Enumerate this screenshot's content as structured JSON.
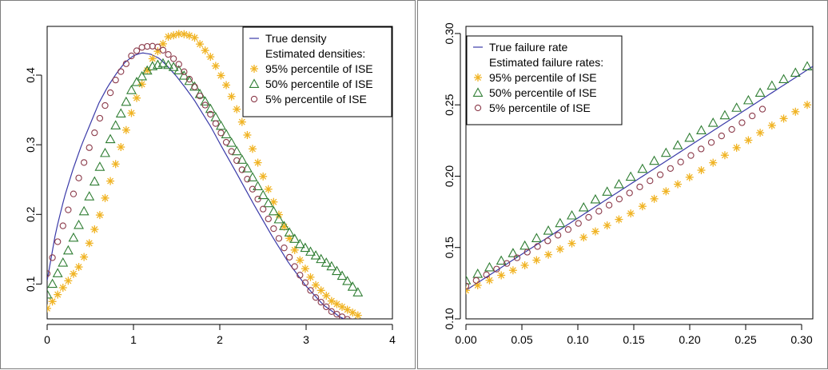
{
  "colors": {
    "true": "#3a3aa8",
    "p95": "#f0b323",
    "p50": "#2e7d32",
    "p5": "#8b3a4a"
  },
  "chart_data": [
    {
      "type": "line",
      "xlim": [
        0,
        4
      ],
      "ylim": [
        0.05,
        0.47
      ],
      "xticks": [
        "0",
        "1",
        "2",
        "3",
        "4"
      ],
      "xtick_values": [
        0,
        1,
        2,
        3,
        4
      ],
      "yticks": [
        "0.1",
        "0.2",
        "0.3",
        "0.4"
      ],
      "ytick_values": [
        0.1,
        0.2,
        0.3,
        0.4
      ],
      "legend": {
        "position": "top-right",
        "items": [
          {
            "key": "true",
            "label": "True density",
            "symbol": "line"
          },
          {
            "key": "heading",
            "label": "Estimated densities:",
            "symbol": "none"
          },
          {
            "key": "p95",
            "label": "95% percentile of ISE",
            "symbol": "star"
          },
          {
            "key": "p50",
            "label": "50% percentile of ISE",
            "symbol": "triangle"
          },
          {
            "key": "p5",
            "label": "5% percentile of ISE",
            "symbol": "circle"
          }
        ]
      },
      "series": [
        {
          "key": "true",
          "name": "True density",
          "style": "line",
          "x": [
            0,
            0.05,
            0.1,
            0.2,
            0.3,
            0.4,
            0.5,
            0.6,
            0.7,
            0.8,
            0.9,
            1.0,
            1.1,
            1.2,
            1.3,
            1.4,
            1.5,
            1.6,
            1.7,
            1.8,
            1.9,
            2.0,
            2.2,
            2.4,
            2.6,
            2.8,
            3.0,
            3.2,
            3.4,
            3.6
          ],
          "y": [
            0.105,
            0.14,
            0.175,
            0.225,
            0.265,
            0.3,
            0.33,
            0.36,
            0.383,
            0.402,
            0.418,
            0.428,
            0.432,
            0.43,
            0.424,
            0.412,
            0.398,
            0.382,
            0.365,
            0.345,
            0.325,
            0.302,
            0.258,
            0.213,
            0.17,
            0.13,
            0.097,
            0.07,
            0.052,
            0.043
          ]
        },
        {
          "key": "p95",
          "name": "95% percentile of ISE",
          "style": "star",
          "x": [
            0,
            0.4,
            0.6,
            0.8,
            1.0,
            1.2,
            1.4,
            1.55,
            1.7,
            1.9,
            2.1,
            2.3,
            2.5,
            2.7,
            2.9,
            3.1,
            3.3,
            3.6
          ],
          "y": [
            0.065,
            0.13,
            0.195,
            0.275,
            0.355,
            0.42,
            0.455,
            0.46,
            0.455,
            0.425,
            0.38,
            0.32,
            0.255,
            0.195,
            0.14,
            0.1,
            0.075,
            0.055
          ]
        },
        {
          "key": "p50",
          "name": "50% percentile of ISE",
          "style": "triangle",
          "x": [
            0,
            0.2,
            0.4,
            0.6,
            0.8,
            1.0,
            1.2,
            1.35,
            1.5,
            1.7,
            1.9,
            2.1,
            2.3,
            2.5,
            2.7,
            2.9,
            3.1,
            3.3,
            3.45,
            3.6
          ],
          "y": [
            0.085,
            0.135,
            0.195,
            0.265,
            0.33,
            0.385,
            0.412,
            0.417,
            0.41,
            0.385,
            0.35,
            0.31,
            0.27,
            0.228,
            0.19,
            0.16,
            0.142,
            0.125,
            0.108,
            0.088
          ]
        },
        {
          "key": "p5",
          "name": "5% percentile of ISE",
          "style": "circle",
          "x": [
            0,
            0.2,
            0.4,
            0.6,
            0.8,
            1.0,
            1.1,
            1.2,
            1.3,
            1.5,
            1.7,
            1.9,
            2.1,
            2.3,
            2.5,
            2.7,
            2.9,
            3.1,
            3.3,
            3.6
          ],
          "y": [
            0.115,
            0.19,
            0.265,
            0.335,
            0.395,
            0.432,
            0.44,
            0.442,
            0.44,
            0.42,
            0.385,
            0.342,
            0.298,
            0.255,
            0.208,
            0.162,
            0.118,
            0.082,
            0.06,
            0.042
          ]
        }
      ]
    },
    {
      "type": "line",
      "xlim": [
        0,
        0.31
      ],
      "ylim": [
        0.1,
        0.305
      ],
      "xticks": [
        "0.00",
        "0.05",
        "0.10",
        "0.15",
        "0.20",
        "0.25",
        "0.30"
      ],
      "xtick_values": [
        0,
        0.05,
        0.1,
        0.15,
        0.2,
        0.25,
        0.3
      ],
      "yticks": [
        "0.10",
        "0.15",
        "0.20",
        "0.25",
        "0.30"
      ],
      "ytick_values": [
        0.1,
        0.15,
        0.2,
        0.25,
        0.3
      ],
      "legend": {
        "position": "top-left",
        "items": [
          {
            "key": "true",
            "label": "True failure rate",
            "symbol": "line"
          },
          {
            "key": "heading",
            "label": "Estimated failure rates:",
            "symbol": "none"
          },
          {
            "key": "p95",
            "label": "95% percentile of ISE",
            "symbol": "star"
          },
          {
            "key": "p50",
            "label": "50% percentile of ISE",
            "symbol": "triangle"
          },
          {
            "key": "p5",
            "label": "5% percentile of ISE",
            "symbol": "circle"
          }
        ]
      },
      "series": [
        {
          "key": "true",
          "name": "True failure rate",
          "style": "line",
          "x": [
            0,
            0.31
          ],
          "y": [
            0.12,
            0.277
          ]
        },
        {
          "key": "p95",
          "name": "95% percentile of ISE",
          "style": "star",
          "x": [
            0,
            0.03,
            0.06,
            0.09,
            0.12,
            0.15,
            0.18,
            0.21,
            0.24,
            0.27,
            0.305
          ],
          "y": [
            0.12,
            0.13,
            0.14,
            0.151,
            0.163,
            0.175,
            0.19,
            0.204,
            0.219,
            0.234,
            0.25
          ]
        },
        {
          "key": "p50",
          "name": "50% percentile of ISE",
          "style": "triangle",
          "x": [
            0,
            0.03,
            0.06,
            0.09,
            0.12,
            0.15,
            0.18,
            0.21,
            0.24,
            0.27,
            0.305
          ],
          "y": [
            0.127,
            0.14,
            0.155,
            0.17,
            0.186,
            0.201,
            0.217,
            0.232,
            0.247,
            0.262,
            0.277
          ]
        },
        {
          "key": "p5",
          "name": "5% percentile of ISE",
          "style": "circle",
          "x": [
            0,
            0.03,
            0.06,
            0.09,
            0.12,
            0.15,
            0.18,
            0.21,
            0.24,
            0.265
          ],
          "y": [
            0.123,
            0.136,
            0.149,
            0.162,
            0.176,
            0.19,
            0.204,
            0.219,
            0.234,
            0.247
          ]
        }
      ]
    }
  ]
}
